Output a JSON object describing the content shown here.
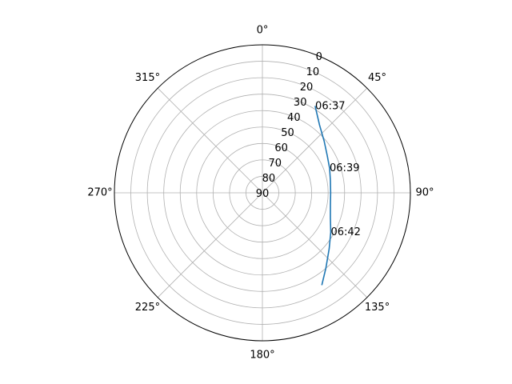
{
  "chart_data": {
    "type": "line",
    "projection": "polar",
    "theta_zero_location": "N",
    "theta_direction": "clockwise",
    "radial_axis": "elevation",
    "rlim": [
      90,
      0
    ],
    "radial_ticks": [
      "0",
      "10",
      "20",
      "30",
      "40",
      "50",
      "60",
      "70",
      "80",
      "90"
    ],
    "radial_tick_values": [
      0,
      10,
      20,
      30,
      40,
      50,
      60,
      70,
      80,
      90
    ],
    "angle_ticks": [
      "0°",
      "45°",
      "90°",
      "135°",
      "180°",
      "225°",
      "270°",
      "315°"
    ],
    "angle_tick_values": [
      0,
      45,
      90,
      135,
      180,
      225,
      270,
      315
    ],
    "grid": true,
    "series": [
      {
        "color": "#1f77b4",
        "points": [
          {
            "azimuth": 31.5,
            "elevation": 28.5
          },
          {
            "azimuth": 40,
            "elevation": 36
          },
          {
            "azimuth": 50,
            "elevation": 41
          },
          {
            "azimuth": 60,
            "elevation": 44.5
          },
          {
            "azimuth": 70,
            "elevation": 46.5
          },
          {
            "azimuth": 80,
            "elevation": 48
          },
          {
            "azimuth": 90,
            "elevation": 48.5
          },
          {
            "azimuth": 100,
            "elevation": 48
          },
          {
            "azimuth": 110,
            "elevation": 46
          },
          {
            "azimuth": 120,
            "elevation": 42
          },
          {
            "azimuth": 130,
            "elevation": 37
          },
          {
            "azimuth": 140,
            "elevation": 30
          },
          {
            "azimuth": 147,
            "elevation": 23.5
          }
        ]
      }
    ],
    "time_labels": [
      {
        "text": "06:37",
        "azimuth": 31.5,
        "elevation": 28.5
      },
      {
        "text": "06:39",
        "azimuth": 70,
        "elevation": 46.5
      },
      {
        "text": "06:42",
        "azimuth": 120,
        "elevation": 42
      }
    ]
  }
}
